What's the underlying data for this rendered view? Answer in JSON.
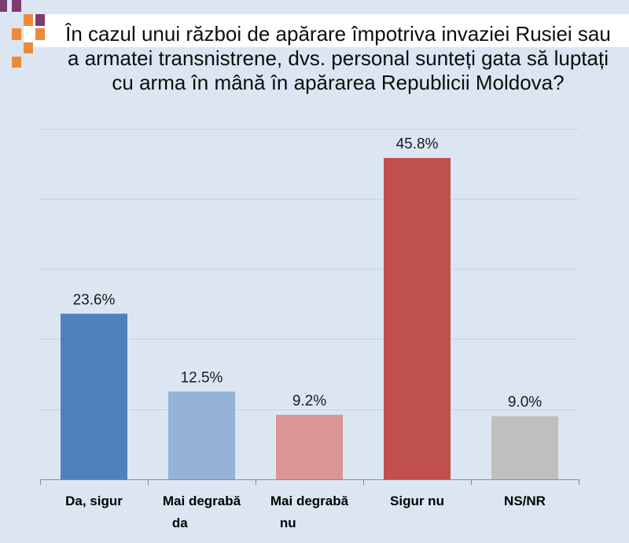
{
  "slide": {
    "background": "#dce6f2",
    "title_band_color": "#ffffff",
    "decor_colors": {
      "purple": "#7a3d72",
      "orange": "#ec8a3b"
    }
  },
  "chart_data": {
    "type": "bar",
    "title": "În cazul unui război de apărare împotriva invaziei Rusiei sau\na armatei transnistrene, dvs. personal sunteți gata să luptați\ncu arma în mână în apărarea Republicii Moldova?",
    "categories": [
      "Da, sigur",
      "Mai degrabă da",
      "Mai degrabă nu",
      "Sigur nu",
      "NS/NR"
    ],
    "values": [
      23.6,
      12.5,
      9.2,
      45.8,
      9.0
    ],
    "value_suffix": "%",
    "bar_colors": [
      "#4f81bd",
      "#95b3d7",
      "#d99694",
      "#c0504d",
      "#bfbfbf"
    ],
    "xlabel": "",
    "ylabel": "",
    "ylim": [
      0,
      50
    ],
    "grid": true,
    "legend": "none",
    "data_labels": true
  }
}
